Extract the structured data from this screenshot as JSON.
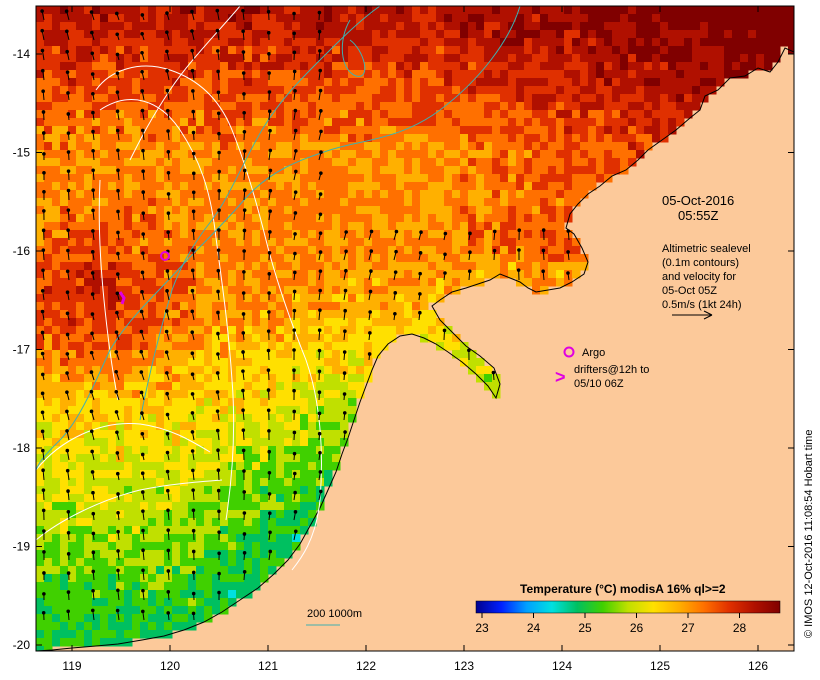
{
  "map": {
    "lon_ticks": [
      "119",
      "120",
      "121",
      "122",
      "123",
      "124",
      "125",
      "126"
    ],
    "lat_ticks": [
      "-14",
      "-15",
      "-16",
      "-17",
      "-18",
      "-19",
      "-20"
    ],
    "colors": {
      "land": "#fcc99a",
      "coast": "#000000",
      "contour_sealevel": "#ffffff",
      "isobath": "#40b0b0",
      "argo": "#e000e0",
      "drifter": "#e000e0"
    }
  },
  "annotations": {
    "date": "05-Oct-2016",
    "time": "05:55Z",
    "altimetry_lines": [
      "Altimetric sealevel",
      "(0.1m contours)",
      "and velocity for",
      "05-Oct 05Z"
    ],
    "velocity_scale": "0.5m/s (1kt 24h)",
    "argo_label": "Argo",
    "drifter_lines": [
      "drifters@12h to",
      "05/10 06Z"
    ],
    "isobath_label": "200  1000m",
    "credit": "© IMOS 12-Oct-2016 11:08:54 Hobart time"
  },
  "colorbar": {
    "title": "Temperature (°C) modisA 16% ql>=2",
    "ticks": [
      "23",
      "24",
      "25",
      "26",
      "27",
      "28"
    ],
    "colors": [
      "#00008f",
      "#0020ff",
      "#00a0ff",
      "#00e0e0",
      "#00c060",
      "#40d000",
      "#c0e000",
      "#ffe000",
      "#ffb000",
      "#ff7000",
      "#e03000",
      "#b01000",
      "#800000"
    ]
  }
}
